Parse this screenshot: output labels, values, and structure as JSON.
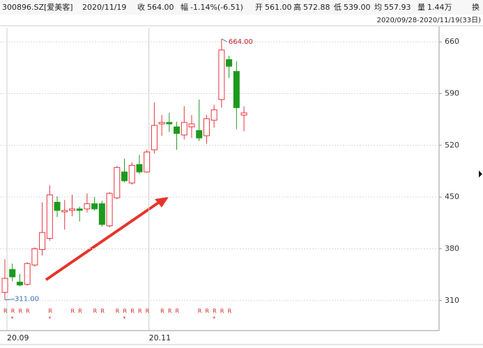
{
  "header": {
    "code": "300896.SZ[爱美客]",
    "date": "2020/11/19",
    "fields": [
      {
        "label": "收",
        "value": "564.00"
      },
      {
        "label": "幅",
        "value": "-1.14%(-6.51)"
      },
      {
        "label": "开",
        "value": "561.00"
      },
      {
        "label": "高",
        "value": "572.88"
      },
      {
        "label": "低",
        "value": "539.00"
      },
      {
        "label": "均",
        "value": "557.93"
      },
      {
        "label": "量",
        "value": "1.44万"
      },
      {
        "label": "换",
        "value": "..."
      }
    ],
    "range": "2020/09/28-2020/11/19(33日)"
  },
  "chart_data": {
    "type": "candlestick",
    "categories": [
      "20.09",
      null,
      null,
      null,
      null,
      null,
      null,
      null,
      null,
      null,
      null,
      null,
      null,
      null,
      null,
      null,
      null,
      null,
      null,
      "20.11",
      null,
      null,
      null,
      null,
      null,
      null,
      null,
      null,
      null,
      null,
      null,
      null,
      null
    ],
    "open": [
      321,
      352,
      335,
      332,
      358,
      379,
      394,
      443,
      430,
      432,
      434,
      434,
      441,
      441,
      411,
      449,
      484,
      469,
      494,
      484,
      514,
      549,
      551,
      545,
      534,
      545,
      540,
      533,
      554,
      582,
      636,
      620,
      561
    ],
    "high": [
      366,
      360,
      346,
      362,
      382,
      443,
      466,
      451,
      446,
      453,
      437,
      455,
      450,
      445,
      457,
      492,
      502,
      497,
      507,
      514,
      578,
      561,
      564,
      552,
      573,
      561,
      582,
      561,
      575,
      664,
      641,
      634,
      572.88
    ],
    "low": [
      311,
      336,
      329,
      330,
      356,
      371,
      391,
      423,
      406,
      424,
      417,
      429,
      432,
      410,
      409,
      447,
      470,
      467,
      481,
      483,
      509,
      533,
      538,
      514,
      528,
      530,
      526,
      522,
      544,
      571,
      611,
      542,
      539
    ],
    "close": [
      340,
      342,
      331,
      360,
      380,
      402,
      453,
      432,
      432,
      434,
      432,
      441,
      434,
      413,
      455,
      490,
      472,
      493,
      484,
      511,
      547,
      551,
      549,
      536,
      551,
      549,
      530,
      556,
      568,
      649,
      627,
      571,
      564
    ],
    "up_color": "#e8313a",
    "down_color": "#1c9a1c",
    "ylim": [
      274,
      679
    ],
    "yticks": [
      660,
      590,
      520,
      450,
      380,
      310
    ],
    "grid": true,
    "high_label": {
      "value": 664,
      "label": "664.00"
    },
    "low_label": {
      "value": 311,
      "label": "311.00"
    },
    "r_marks": [
      "R",
      "R",
      "R",
      "R",
      null,
      null,
      "R",
      null,
      null,
      "R",
      "R",
      null,
      "R",
      "R",
      null,
      "R",
      "R",
      "R",
      "R",
      "R",
      null,
      "R",
      "R",
      "R",
      null,
      null,
      "R",
      "R",
      "R",
      "R",
      "R",
      null,
      null
    ],
    "star_marks": [
      null,
      "*",
      null,
      null,
      null,
      null,
      "*",
      null,
      null,
      null,
      null,
      null,
      null,
      null,
      null,
      null,
      "*",
      null,
      null,
      null,
      null,
      null,
      null,
      null,
      null,
      null,
      null,
      null,
      "*",
      null,
      null,
      null,
      null
    ]
  }
}
